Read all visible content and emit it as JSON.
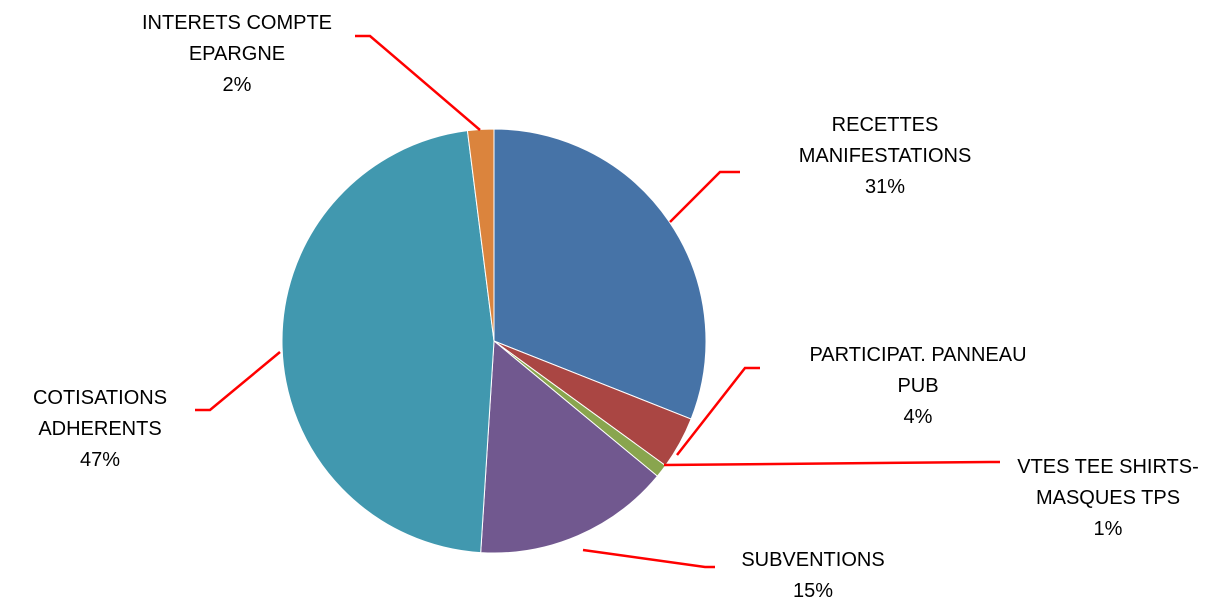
{
  "chart_data": {
    "type": "pie",
    "categories": [
      "RECETTES MANIFESTATIONS",
      "PARTICIPAT. PANNEAU PUB",
      "VTES TEE SHIRTS-MASQUES TPS",
      "SUBVENTIONS",
      "COTISATIONS ADHERENTS",
      "INTERETS COMPTE EPARGNE"
    ],
    "values": [
      31,
      4,
      1,
      15,
      47,
      2
    ],
    "value_labels": [
      "31%",
      "4%",
      "1%",
      "15%",
      "47%",
      "2%"
    ],
    "colors": [
      "#4673a7",
      "#aa4643",
      "#89a54e",
      "#71588f",
      "#4198af",
      "#db843d"
    ],
    "leader_color": "#ff0000"
  }
}
